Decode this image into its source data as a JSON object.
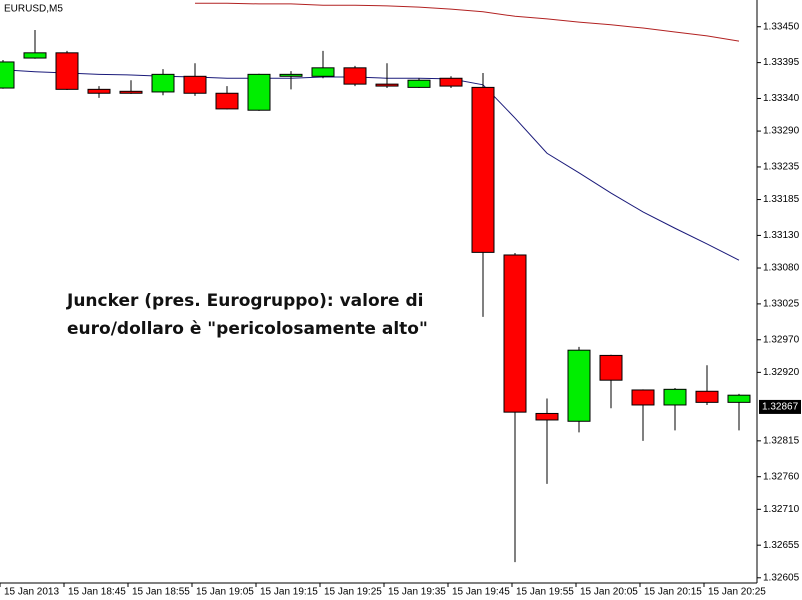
{
  "chart_data": {
    "type": "candlestick",
    "title": "EURUSD,M5",
    "annotation": [
      "Juncker (pres. Eurogruppo): valore di",
      "euro/dollaro è \"pericolosamente alto\""
    ],
    "categories": [
      "15 Jan 2013",
      null,
      "15 Jan 18:45",
      null,
      "15 Jan 18:55",
      null,
      "15 Jan 19:05",
      null,
      "15 Jan 19:15",
      null,
      "15 Jan 19:25",
      null,
      "15 Jan 19:35",
      null,
      "15 Jan 19:45",
      null,
      "15 Jan 19:55",
      null,
      "15 Jan 20:05",
      null,
      "15 Jan 20:15",
      null,
      "15 Jan 20:25",
      null
    ],
    "open": [
      1.33356,
      1.33402,
      1.3341,
      1.33354,
      1.33351,
      1.3335,
      1.33374,
      1.33348,
      1.33322,
      1.33374,
      1.33374,
      1.33387,
      1.33362,
      1.33357,
      1.33371,
      1.33357,
      1.331,
      1.32857,
      1.32845,
      1.32946,
      1.32893,
      1.3287,
      1.32891,
      1.32874
    ],
    "high": [
      1.33399,
      1.33445,
      1.33413,
      1.33359,
      1.33368,
      1.33385,
      1.33394,
      1.33359,
      1.33378,
      1.33382,
      1.33413,
      1.3339,
      1.33394,
      1.33371,
      1.33374,
      1.33379,
      1.33103,
      1.3288,
      1.32959,
      1.32947,
      1.32894,
      1.32896,
      1.32931,
      1.32887
    ],
    "low": [
      1.33355,
      1.33401,
      1.33353,
      1.33341,
      1.33347,
      1.33345,
      1.33344,
      1.33323,
      1.33321,
      1.33354,
      1.33371,
      1.33359,
      1.33356,
      1.33356,
      1.33356,
      1.33005,
      1.32629,
      1.32749,
      1.32828,
      1.32865,
      1.32815,
      1.32831,
      1.3287,
      1.32831
    ],
    "close": [
      1.33396,
      1.3341,
      1.33354,
      1.33348,
      1.33348,
      1.33377,
      1.33348,
      1.33324,
      1.33377,
      1.33377,
      1.33387,
      1.33362,
      1.33359,
      1.33368,
      1.33359,
      1.33104,
      1.32859,
      1.32847,
      1.32954,
      1.32908,
      1.3287,
      1.32894,
      1.32874,
      1.32885
    ],
    "up_color": "#00ee00",
    "down_color": "#ff0000",
    "series": [
      {
        "color": "#1a1a7a",
        "values": [
          1.33384,
          1.33381,
          1.33379,
          1.33377,
          1.33376,
          1.33374,
          1.33373,
          1.33371,
          1.33371,
          1.33371,
          1.33373,
          1.33373,
          1.33371,
          1.33371,
          1.3337,
          1.33361,
          1.3331,
          1.33256,
          1.33226,
          1.33195,
          1.33166,
          1.33141,
          1.33117,
          1.33092
        ]
      },
      {
        "color": "#b22222",
        "values": [
          null,
          null,
          null,
          null,
          null,
          null,
          1.33486,
          1.33486,
          1.33485,
          1.33485,
          1.33483,
          1.33483,
          1.33482,
          1.3348,
          1.33477,
          1.33473,
          1.33466,
          1.33462,
          1.33457,
          1.33453,
          1.33448,
          1.33442,
          1.33436,
          1.33428
        ]
      }
    ],
    "current_price": 1.32867,
    "ylim": [
      1.32597,
      1.33491
    ],
    "yticks": [
      {
        "value": 1.3345,
        "label": "1.33450"
      },
      1.33395,
      {
        "value": 1.3334,
        "label": "1.33340"
      },
      {
        "value": 1.3329,
        "label": "1.33290"
      },
      1.33235,
      1.33185,
      {
        "value": 1.3313,
        "label": "1.33130"
      },
      {
        "value": 1.3308,
        "label": "1.33080"
      },
      1.33025,
      {
        "value": 1.3297,
        "label": "1.32970"
      },
      {
        "value": 1.3292,
        "label": "1.32920"
      },
      1.32815,
      {
        "value": 1.3276,
        "label": "1.32760"
      },
      {
        "value": 1.3271,
        "label": "1.32710"
      },
      1.32655,
      1.32605
    ]
  }
}
